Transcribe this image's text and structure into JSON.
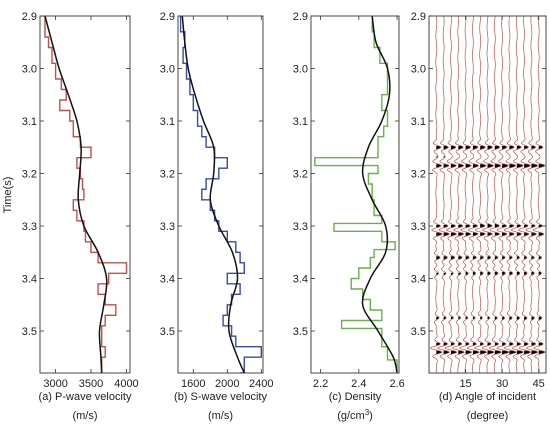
{
  "figure": {
    "y_axis_label": "Time(s)",
    "time_ticks": [
      "2.9",
      "3.0",
      "3.1",
      "3.2",
      "3.3",
      "3.4",
      "3.5"
    ]
  },
  "chart_data": [
    {
      "type": "line",
      "caption": "(a) P-wave velocity",
      "unit_label": "(m/s)",
      "xticks": [
        "3000",
        "3500",
        "4000"
      ],
      "xlim": [
        2780,
        4050
      ],
      "ylim": [
        2.9,
        3.58
      ],
      "y_reversed": true,
      "series": [
        {
          "role": "log",
          "color": "#c0504d",
          "style": "step",
          "t": [
            2.9,
            2.94,
            2.96,
            2.99,
            3.02,
            3.04,
            3.06,
            3.08,
            3.1,
            3.13,
            3.15,
            3.17,
            3.19,
            3.21,
            3.23,
            3.25,
            3.27,
            3.29,
            3.31,
            3.33,
            3.35,
            3.37,
            3.39,
            3.41,
            3.43,
            3.45,
            3.47,
            3.49,
            3.51,
            3.53,
            3.55,
            3.58
          ],
          "v": [
            2850,
            2900,
            2950,
            3000,
            3080,
            3150,
            3060,
            3200,
            3250,
            3350,
            3500,
            3300,
            3350,
            3380,
            3400,
            3250,
            3300,
            3400,
            3420,
            3500,
            3600,
            4000,
            3750,
            3600,
            3700,
            3850,
            3700,
            3650,
            3650,
            3700,
            3650,
            3650
          ]
        },
        {
          "role": "trend",
          "color": "#111111",
          "style": "smooth",
          "t": [
            2.9,
            2.95,
            3.0,
            3.05,
            3.1,
            3.15,
            3.2,
            3.25,
            3.3,
            3.35,
            3.4,
            3.45,
            3.5,
            3.55,
            3.58
          ],
          "v": [
            2850,
            2950,
            3050,
            3180,
            3300,
            3360,
            3340,
            3320,
            3400,
            3600,
            3720,
            3680,
            3620,
            3640,
            3650
          ]
        }
      ]
    },
    {
      "type": "line",
      "caption": "(b) S-wave velocity",
      "unit_label": "(m/s)",
      "xticks": [
        "1600",
        "2000",
        "2400"
      ],
      "xlim": [
        1420,
        2420
      ],
      "ylim": [
        2.9,
        3.58
      ],
      "y_reversed": true,
      "series": [
        {
          "role": "log",
          "color": "#3b4aa5",
          "style": "step",
          "t": [
            2.9,
            2.93,
            2.96,
            2.99,
            3.02,
            3.05,
            3.08,
            3.11,
            3.13,
            3.15,
            3.17,
            3.19,
            3.21,
            3.23,
            3.25,
            3.27,
            3.29,
            3.31,
            3.33,
            3.35,
            3.37,
            3.39,
            3.41,
            3.43,
            3.45,
            3.47,
            3.49,
            3.51,
            3.53,
            3.55,
            3.58
          ],
          "v": [
            1450,
            1500,
            1480,
            1520,
            1560,
            1600,
            1650,
            1700,
            1750,
            1850,
            2000,
            1900,
            1750,
            1700,
            1800,
            1850,
            1900,
            2000,
            2100,
            2150,
            2200,
            2000,
            2150,
            2050,
            2000,
            1950,
            2050,
            2100,
            2400,
            2200,
            2150
          ]
        },
        {
          "role": "trend",
          "color": "#111111",
          "style": "smooth",
          "t": [
            2.9,
            2.95,
            3.0,
            3.05,
            3.1,
            3.15,
            3.2,
            3.25,
            3.3,
            3.35,
            3.4,
            3.45,
            3.5,
            3.55,
            3.58
          ],
          "v": [
            1470,
            1500,
            1540,
            1620,
            1720,
            1840,
            1840,
            1800,
            1900,
            2060,
            2120,
            2040,
            2020,
            2120,
            2200
          ]
        }
      ]
    },
    {
      "type": "line",
      "caption": "(c) Density",
      "unit_label": "(g/cm3)",
      "unit_main": "(g/cm",
      "unit_sup": "3",
      "unit_close": ")",
      "xticks": [
        "2.2",
        "2.4",
        "2.6"
      ],
      "xlim": [
        2.15,
        2.61
      ],
      "ylim": [
        2.9,
        3.58
      ],
      "y_reversed": true,
      "series": [
        {
          "role": "log",
          "color": "#6ab04c",
          "style": "step",
          "t": [
            2.9,
            2.93,
            2.96,
            2.99,
            3.02,
            3.05,
            3.08,
            3.11,
            3.13,
            3.17,
            3.185,
            3.2,
            3.22,
            3.25,
            3.28,
            3.295,
            3.31,
            3.33,
            3.345,
            3.36,
            3.38,
            3.4,
            3.42,
            3.44,
            3.46,
            3.48,
            3.495,
            3.51,
            3.53,
            3.555,
            3.58
          ],
          "v": [
            2.47,
            2.48,
            2.51,
            2.55,
            2.55,
            2.52,
            2.55,
            2.53,
            2.5,
            2.17,
            2.5,
            2.45,
            2.47,
            2.48,
            2.52,
            2.27,
            2.52,
            2.59,
            2.48,
            2.46,
            2.4,
            2.36,
            2.42,
            2.46,
            2.52,
            2.31,
            2.52,
            2.52,
            2.55,
            2.6,
            2.6
          ]
        },
        {
          "role": "trend",
          "color": "#111111",
          "style": "smooth",
          "t": [
            2.9,
            2.95,
            3.0,
            3.05,
            3.1,
            3.15,
            3.2,
            3.25,
            3.3,
            3.35,
            3.4,
            3.45,
            3.5,
            3.55,
            3.58
          ],
          "v": [
            2.47,
            2.49,
            2.55,
            2.56,
            2.52,
            2.45,
            2.42,
            2.47,
            2.54,
            2.54,
            2.46,
            2.42,
            2.5,
            2.58,
            2.6
          ]
        }
      ]
    },
    {
      "type": "wiggle",
      "caption": "(d) Angle of incident",
      "unit_label": "(degree)",
      "xticks": [
        "15",
        "30",
        "45"
      ],
      "xlim": [
        0,
        48
      ],
      "ylim": [
        2.9,
        3.58
      ],
      "y_reversed": true,
      "trace_angles": [
        3,
        6,
        9,
        12,
        15,
        18,
        21,
        24,
        27,
        30,
        33,
        36,
        39,
        42,
        45
      ],
      "trace_color": "#b85450",
      "fill_color": "#000000",
      "events": [
        {
          "t": 3.15,
          "amp": 0.75
        },
        {
          "t": 3.185,
          "amp": 0.95
        },
        {
          "t": 3.3,
          "amp": 0.6
        },
        {
          "t": 3.315,
          "amp": 0.8
        },
        {
          "t": 3.36,
          "amp": 0.55
        },
        {
          "t": 3.39,
          "amp": 0.45
        },
        {
          "t": 3.475,
          "amp": 0.45
        },
        {
          "t": 3.525,
          "amp": 0.55
        },
        {
          "t": 3.54,
          "amp": 0.95
        }
      ]
    }
  ]
}
